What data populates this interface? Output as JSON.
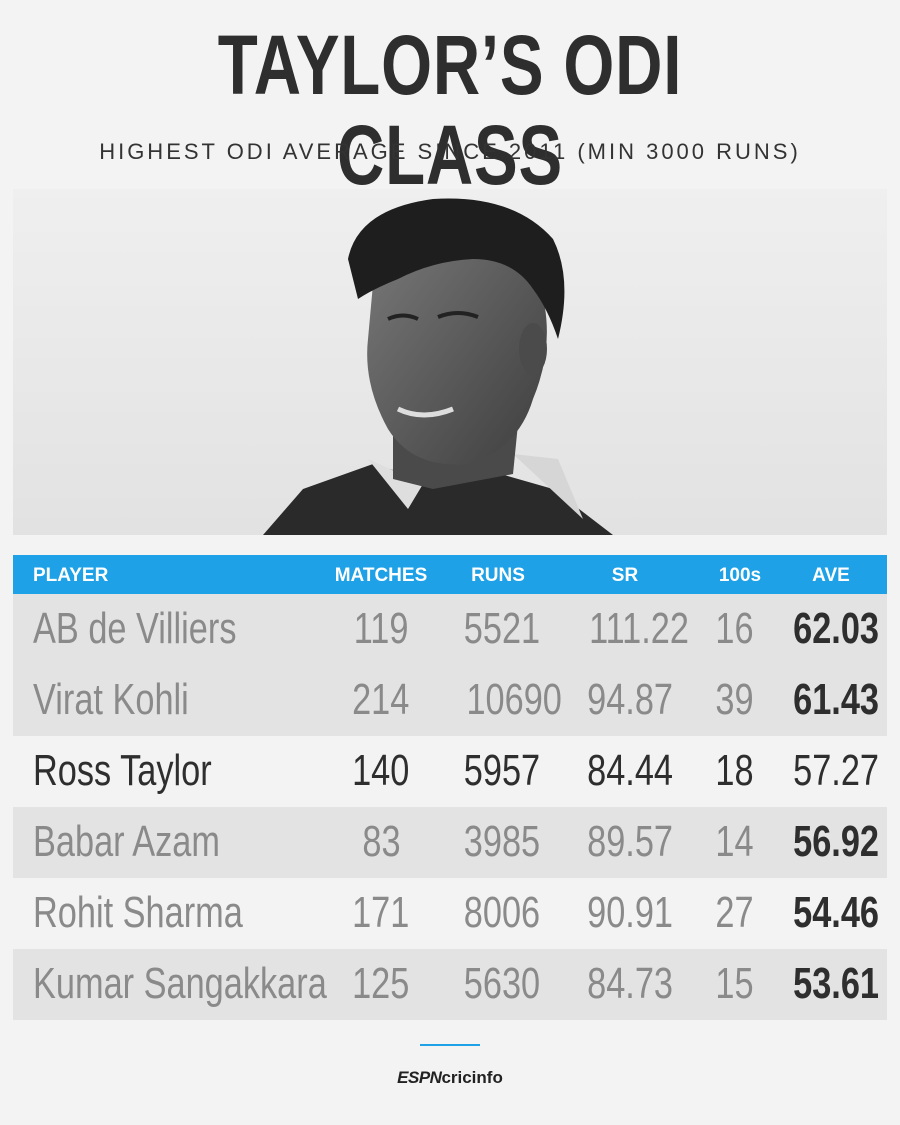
{
  "header": {
    "title": "TAYLOR’S ODI CLASS",
    "subtitle": "HIGHEST ODI AVERAGE SINCE 2011 (MIN 3000 RUNS)"
  },
  "table": {
    "columns": {
      "player": "PLAYER",
      "matches": "MATCHES",
      "runs": "RUNS",
      "sr": "SR",
      "hundreds": "100s",
      "ave": "AVE"
    },
    "rows": [
      {
        "player": "AB de Villiers",
        "matches": "119",
        "runs": "5521",
        "sr": "111.22",
        "hundreds": "16",
        "ave": "62.03"
      },
      {
        "player": "Virat Kohli",
        "matches": "214",
        "runs": "10690",
        "sr": "94.87",
        "hundreds": "39",
        "ave": "61.43"
      },
      {
        "player": "Ross Taylor",
        "matches": "140",
        "runs": "5957",
        "sr": "84.44",
        "hundreds": "18",
        "ave": "57.27"
      },
      {
        "player": "Babar Azam",
        "matches": "83",
        "runs": "3985",
        "sr": "89.57",
        "hundreds": "14",
        "ave": "56.92"
      },
      {
        "player": "Rohit Sharma",
        "matches": "171",
        "runs": "8006",
        "sr": "90.91",
        "hundreds": "27",
        "ave": "54.46"
      },
      {
        "player": "Kumar Sangakkara",
        "matches": "125",
        "runs": "5630",
        "sr": "84.73",
        "hundreds": "15",
        "ave": "53.61"
      }
    ]
  },
  "footer": {
    "logo_espn": "ESPN",
    "logo_cricinfo": "cricinfo"
  },
  "colors": {
    "accent": "#1ea1e6",
    "highlight_text": "#2e2e2e",
    "muted_text": "#8a8a8a",
    "background": "#f3f3f3"
  }
}
